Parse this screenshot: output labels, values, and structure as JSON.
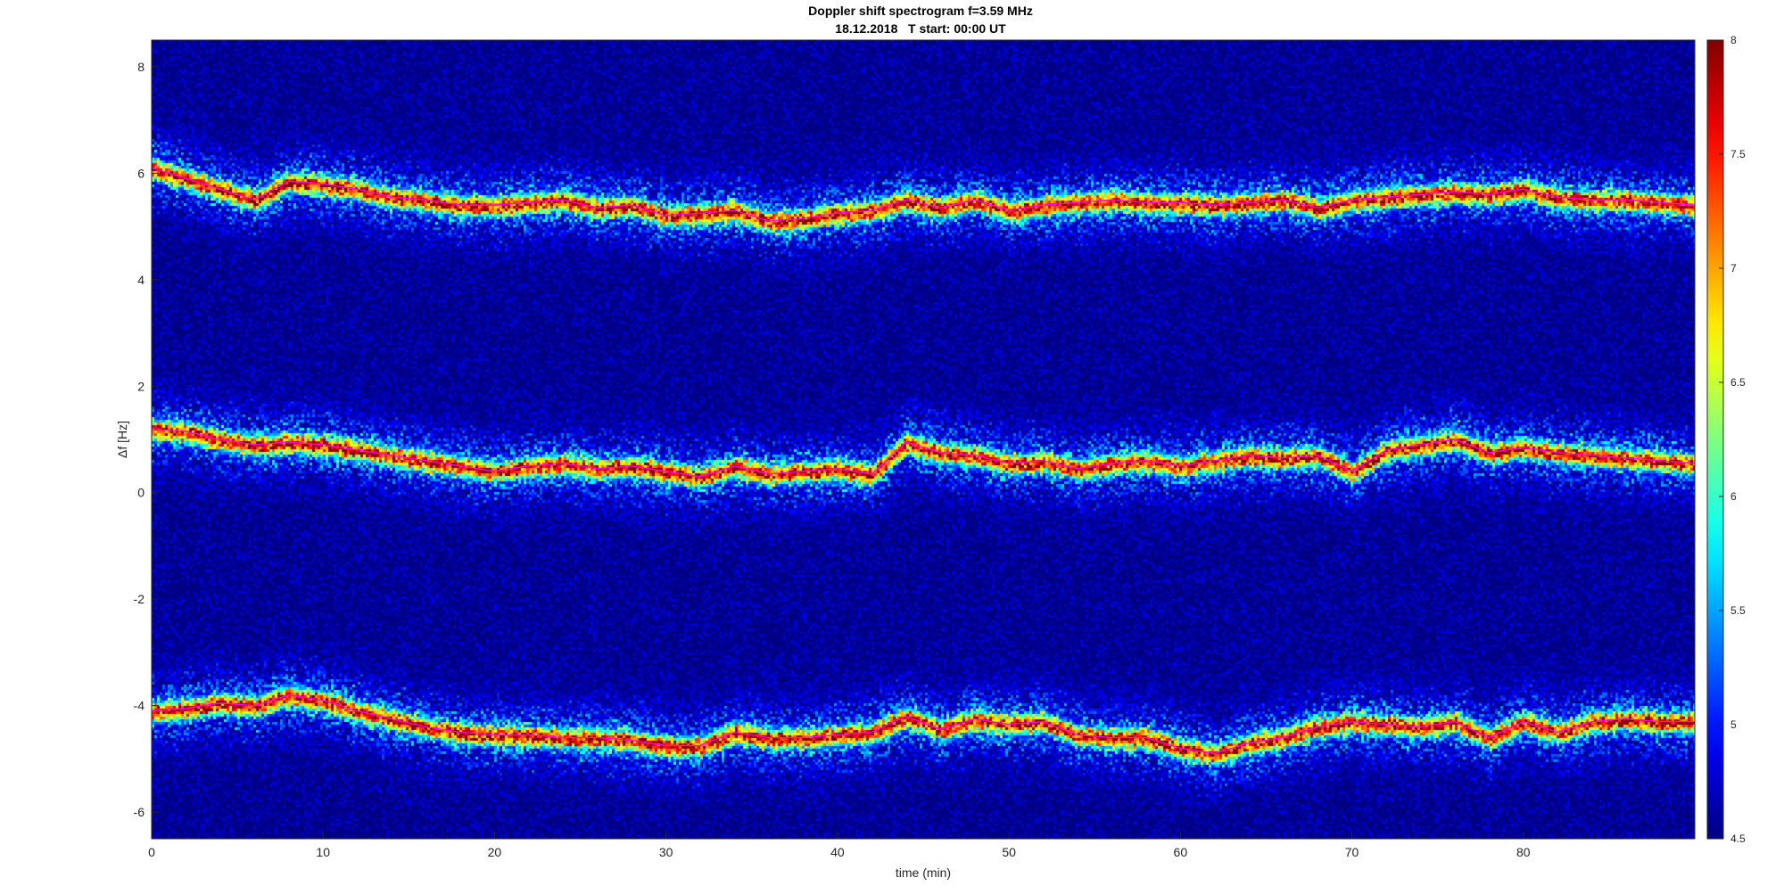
{
  "chart_data": {
    "type": "heatmap",
    "title": "Doppler shift spectrogram f=3.59 MHz",
    "subtitle": "18.12.2018   T start: 00:00 UT",
    "xlabel": "time (min)",
    "ylabel": "Δf [Hz]",
    "xlim": [
      0,
      90
    ],
    "ylim": [
      -6.5,
      8.5
    ],
    "xticks": [
      0,
      10,
      20,
      30,
      40,
      50,
      60,
      70,
      80
    ],
    "yticks": [
      -6,
      -4,
      -2,
      0,
      2,
      4,
      6,
      8
    ],
    "colormap": "jet",
    "colorbar": {
      "range": [
        4.5,
        8
      ],
      "ticks": [
        4.5,
        5,
        5.5,
        6,
        6.5,
        7,
        7.5,
        8
      ]
    },
    "grid": false,
    "series": [
      {
        "color": "#ff00ff",
        "x": [
          0,
          2,
          4,
          6,
          8,
          10,
          12,
          14,
          16,
          18,
          20,
          22,
          24,
          26,
          28,
          30,
          32,
          34,
          36,
          38,
          40,
          42,
          44,
          46,
          48,
          50,
          52,
          54,
          56,
          58,
          60,
          62,
          64,
          66,
          68,
          70,
          72,
          74,
          76,
          78,
          80,
          82,
          84,
          86,
          88,
          90
        ],
        "y": [
          6.1,
          5.9,
          5.7,
          5.5,
          5.85,
          5.8,
          5.7,
          5.55,
          5.5,
          5.4,
          5.4,
          5.45,
          5.5,
          5.35,
          5.4,
          5.2,
          5.25,
          5.3,
          5.1,
          5.15,
          5.25,
          5.3,
          5.5,
          5.35,
          5.5,
          5.3,
          5.4,
          5.45,
          5.5,
          5.45,
          5.45,
          5.4,
          5.45,
          5.5,
          5.35,
          5.5,
          5.55,
          5.6,
          5.65,
          5.6,
          5.7,
          5.55,
          5.5,
          5.5,
          5.45,
          5.4
        ]
      },
      {
        "color": "#ff00ff",
        "x": [
          0,
          2,
          4,
          6,
          8,
          10,
          12,
          14,
          16,
          18,
          20,
          22,
          24,
          26,
          28,
          30,
          32,
          34,
          36,
          38,
          40,
          42,
          44,
          46,
          48,
          50,
          52,
          54,
          56,
          58,
          60,
          62,
          64,
          66,
          68,
          70,
          72,
          74,
          76,
          78,
          80,
          82,
          84,
          86,
          88,
          90
        ],
        "y": [
          1.2,
          1.15,
          1.0,
          0.9,
          0.95,
          0.9,
          0.8,
          0.7,
          0.6,
          0.5,
          0.4,
          0.5,
          0.55,
          0.45,
          0.5,
          0.4,
          0.3,
          0.5,
          0.35,
          0.4,
          0.45,
          0.35,
          0.95,
          0.75,
          0.7,
          0.55,
          0.6,
          0.45,
          0.55,
          0.6,
          0.5,
          0.6,
          0.7,
          0.65,
          0.7,
          0.4,
          0.8,
          0.9,
          1.0,
          0.75,
          0.85,
          0.75,
          0.7,
          0.65,
          0.6,
          0.55
        ]
      },
      {
        "color": "#ff00ff",
        "x": [
          0,
          2,
          4,
          6,
          8,
          10,
          12,
          14,
          16,
          18,
          20,
          22,
          24,
          26,
          28,
          30,
          32,
          34,
          36,
          38,
          40,
          42,
          44,
          46,
          48,
          50,
          52,
          54,
          56,
          58,
          60,
          62,
          64,
          66,
          68,
          70,
          72,
          74,
          76,
          78,
          80,
          82,
          84,
          86,
          88,
          90
        ],
        "y": [
          -4.1,
          -4.05,
          -3.95,
          -4.0,
          -3.8,
          -3.9,
          -4.1,
          -4.25,
          -4.4,
          -4.5,
          -4.55,
          -4.55,
          -4.6,
          -4.6,
          -4.65,
          -4.75,
          -4.75,
          -4.5,
          -4.6,
          -4.6,
          -4.55,
          -4.5,
          -4.2,
          -4.45,
          -4.25,
          -4.35,
          -4.3,
          -4.55,
          -4.6,
          -4.6,
          -4.8,
          -4.9,
          -4.7,
          -4.6,
          -4.4,
          -4.3,
          -4.35,
          -4.4,
          -4.3,
          -4.6,
          -4.3,
          -4.5,
          -4.3,
          -4.25,
          -4.3,
          -4.3
        ]
      }
    ]
  }
}
